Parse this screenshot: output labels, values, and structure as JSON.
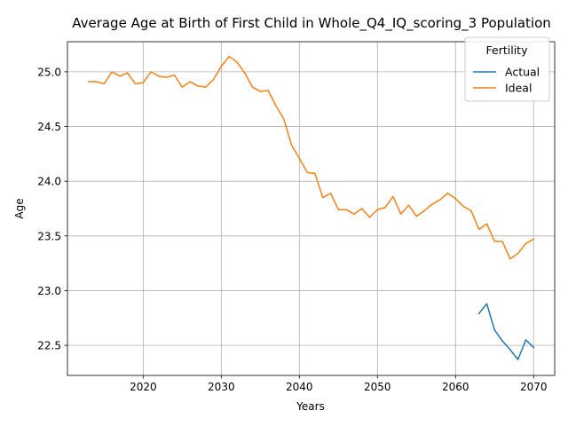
{
  "chart_data": {
    "type": "line",
    "title": "Average Age at Birth of First Child in Whole_Q4_IQ_scoring_3 Population",
    "xlabel": "Years",
    "ylabel": "Age",
    "xlim": [
      2010.3,
      2072.7
    ],
    "ylim": [
      22.225,
      25.275
    ],
    "xticks": [
      2020,
      2030,
      2040,
      2050,
      2060,
      2070
    ],
    "yticks": [
      22.5,
      23.0,
      23.5,
      24.0,
      24.5,
      25.0
    ],
    "xtick_labels": [
      "2020",
      "2030",
      "2040",
      "2050",
      "2060",
      "2070"
    ],
    "ytick_labels": [
      "22.5",
      "23.0",
      "23.5",
      "24.0",
      "24.5",
      "25.0"
    ],
    "grid": true,
    "legend": {
      "title": "Fertility",
      "placement": "top-right"
    },
    "series": [
      {
        "name": "Actual",
        "color": "#1f77b4",
        "x": [
          2063,
          2064,
          2065,
          2066,
          2067,
          2068,
          2069,
          2070
        ],
        "y": [
          22.79,
          22.88,
          22.64,
          22.54,
          22.46,
          22.37,
          22.55,
          22.48
        ]
      },
      {
        "name": "Ideal",
        "color": "#ff7f0e",
        "x": [
          2013,
          2014,
          2015,
          2016,
          2017,
          2018,
          2019,
          2020,
          2021,
          2022,
          2023,
          2024,
          2025,
          2026,
          2027,
          2028,
          2029,
          2030,
          2031,
          2032,
          2033,
          2034,
          2035,
          2036,
          2037,
          2038,
          2039,
          2040,
          2041,
          2042,
          2043,
          2044,
          2045,
          2046,
          2047,
          2048,
          2049,
          2050,
          2051,
          2052,
          2053,
          2054,
          2055,
          2056,
          2057,
          2058,
          2059,
          2060,
          2061,
          2062,
          2063,
          2064,
          2065,
          2066,
          2067,
          2068,
          2069,
          2070
        ],
        "y": [
          24.91,
          24.91,
          24.89,
          25.0,
          24.96,
          24.99,
          24.89,
          24.9,
          25.0,
          24.96,
          24.95,
          24.97,
          24.86,
          24.91,
          24.87,
          24.86,
          24.93,
          25.05,
          25.14,
          25.09,
          24.99,
          24.86,
          24.82,
          24.83,
          24.69,
          24.57,
          24.33,
          24.21,
          24.08,
          24.07,
          23.85,
          23.89,
          23.74,
          23.74,
          23.7,
          23.75,
          23.67,
          23.74,
          23.76,
          23.86,
          23.7,
          23.78,
          23.68,
          23.73,
          23.79,
          23.83,
          23.89,
          23.84,
          23.77,
          23.73,
          23.56,
          23.61,
          23.45,
          23.45,
          23.29,
          23.34,
          23.43,
          23.47
        ]
      }
    ]
  }
}
